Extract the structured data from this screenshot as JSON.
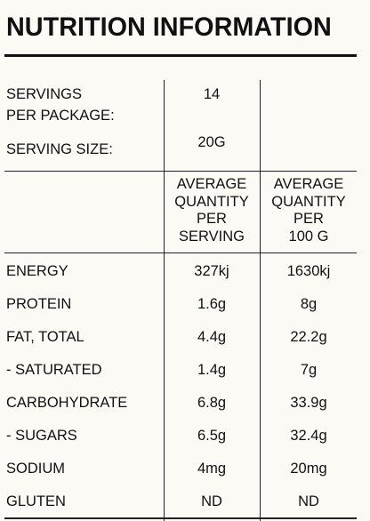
{
  "title": "NUTRITION INFORMATION",
  "servings": {
    "label_line1": "SERVINGS",
    "label_line2": "PER PACKAGE:",
    "value": "14"
  },
  "serving_size": {
    "label": "SERVING SIZE:",
    "value": "20G"
  },
  "headers": {
    "per_serving": [
      "AVERAGE",
      "QUANTITY",
      "PER",
      "SERVING"
    ],
    "per_100g": [
      "AVERAGE",
      "QUANTITY",
      "PER",
      "100 G"
    ]
  },
  "rows": [
    {
      "label": "ENERGY",
      "per_serving": "327kj",
      "per_100g": "1630kj"
    },
    {
      "label": "PROTEIN",
      "per_serving": "1.6g",
      "per_100g": "8g"
    },
    {
      "label": "FAT, TOTAL",
      "per_serving": "4.4g",
      "per_100g": "22.2g"
    },
    {
      "label": "- SATURATED",
      "per_serving": "1.4g",
      "per_100g": "7g"
    },
    {
      "label": "CARBOHYDRATE",
      "per_serving": "6.8g",
      "per_100g": "33.9g"
    },
    {
      "label": "- SUGARS",
      "per_serving": "6.5g",
      "per_100g": "32.4g"
    },
    {
      "label": "SODIUM",
      "per_serving": "4mg",
      "per_100g": "20mg"
    },
    {
      "label": "GLUTEN",
      "per_serving": "ND",
      "per_100g": "ND"
    }
  ]
}
